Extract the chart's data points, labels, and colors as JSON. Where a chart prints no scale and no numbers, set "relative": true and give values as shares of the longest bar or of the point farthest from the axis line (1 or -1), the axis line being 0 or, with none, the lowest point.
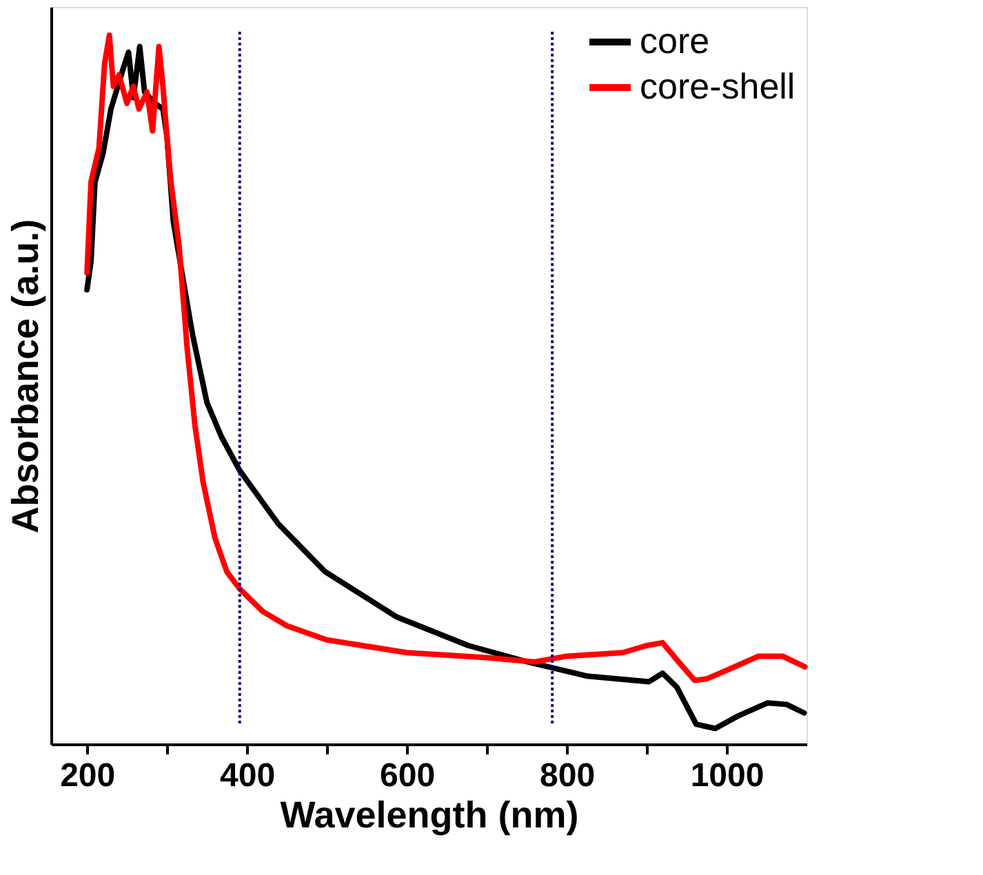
{
  "chart_data": {
    "type": "line",
    "xlabel": "Wavelength (nm)",
    "ylabel": "Absorbance (a.u.)",
    "relative": true,
    "xlim": [
      155,
      1100
    ],
    "xticks": [
      200,
      {
        "value": 300,
        "label": null
      },
      400,
      {
        "value": 500,
        "label": null
      },
      600,
      {
        "value": 700,
        "label": null
      },
      800,
      {
        "value": 900,
        "label": null
      },
      1000
    ],
    "legend": "top right",
    "grid": false,
    "line_style": "solid",
    "marker": "none",
    "ref_lines": [
      {
        "axis": "x",
        "value": 391,
        "color": "#00008b",
        "line_style": "dotted"
      },
      {
        "axis": "x",
        "value": 782,
        "color": "#00008b",
        "line_style": "dotted"
      }
    ],
    "series": [
      {
        "name": "core",
        "color": "#000000",
        "x": [
          200,
          205,
          210,
          220,
          230,
          245,
          252,
          258,
          266,
          272,
          285,
          295,
          300,
          308,
          320,
          332,
          350,
          368,
          391,
          439,
          498,
          588,
          677,
          751,
          825,
          903,
          920,
          938,
          962,
          986,
          1015,
          1051,
          1075,
          1097
        ],
        "values": [
          0.641,
          0.681,
          0.793,
          0.833,
          0.896,
          0.952,
          0.976,
          0.912,
          0.984,
          0.92,
          0.904,
          0.896,
          0.857,
          0.737,
          0.657,
          0.578,
          0.482,
          0.434,
          0.386,
          0.311,
          0.243,
          0.179,
          0.139,
          0.116,
          0.096,
          0.088,
          0.1,
          0.08,
          0.028,
          0.022,
          0.04,
          0.058,
          0.056,
          0.044
        ]
      },
      {
        "name": "core-shell",
        "color": "#ff0000",
        "x": [
          200,
          205,
          215,
          222,
          228,
          233,
          240,
          250,
          258,
          265,
          275,
          282,
          290,
          295,
          300,
          305,
          315,
          325,
          335,
          345,
          360,
          375,
          391,
          420,
          450,
          500,
          600,
          700,
          760,
          800,
          870,
          900,
          920,
          940,
          960,
          975,
          1000,
          1040,
          1070,
          1098
        ],
        "values": [
          0.665,
          0.793,
          0.841,
          0.96,
          1.0,
          0.928,
          0.944,
          0.904,
          0.928,
          0.896,
          0.92,
          0.865,
          0.984,
          0.928,
          0.857,
          0.793,
          0.705,
          0.562,
          0.45,
          0.371,
          0.291,
          0.243,
          0.219,
          0.187,
          0.167,
          0.147,
          0.129,
          0.122,
          0.116,
          0.124,
          0.129,
          0.139,
          0.143,
          0.116,
          0.09,
          0.092,
          0.104,
          0.124,
          0.124,
          0.109
        ]
      }
    ]
  }
}
